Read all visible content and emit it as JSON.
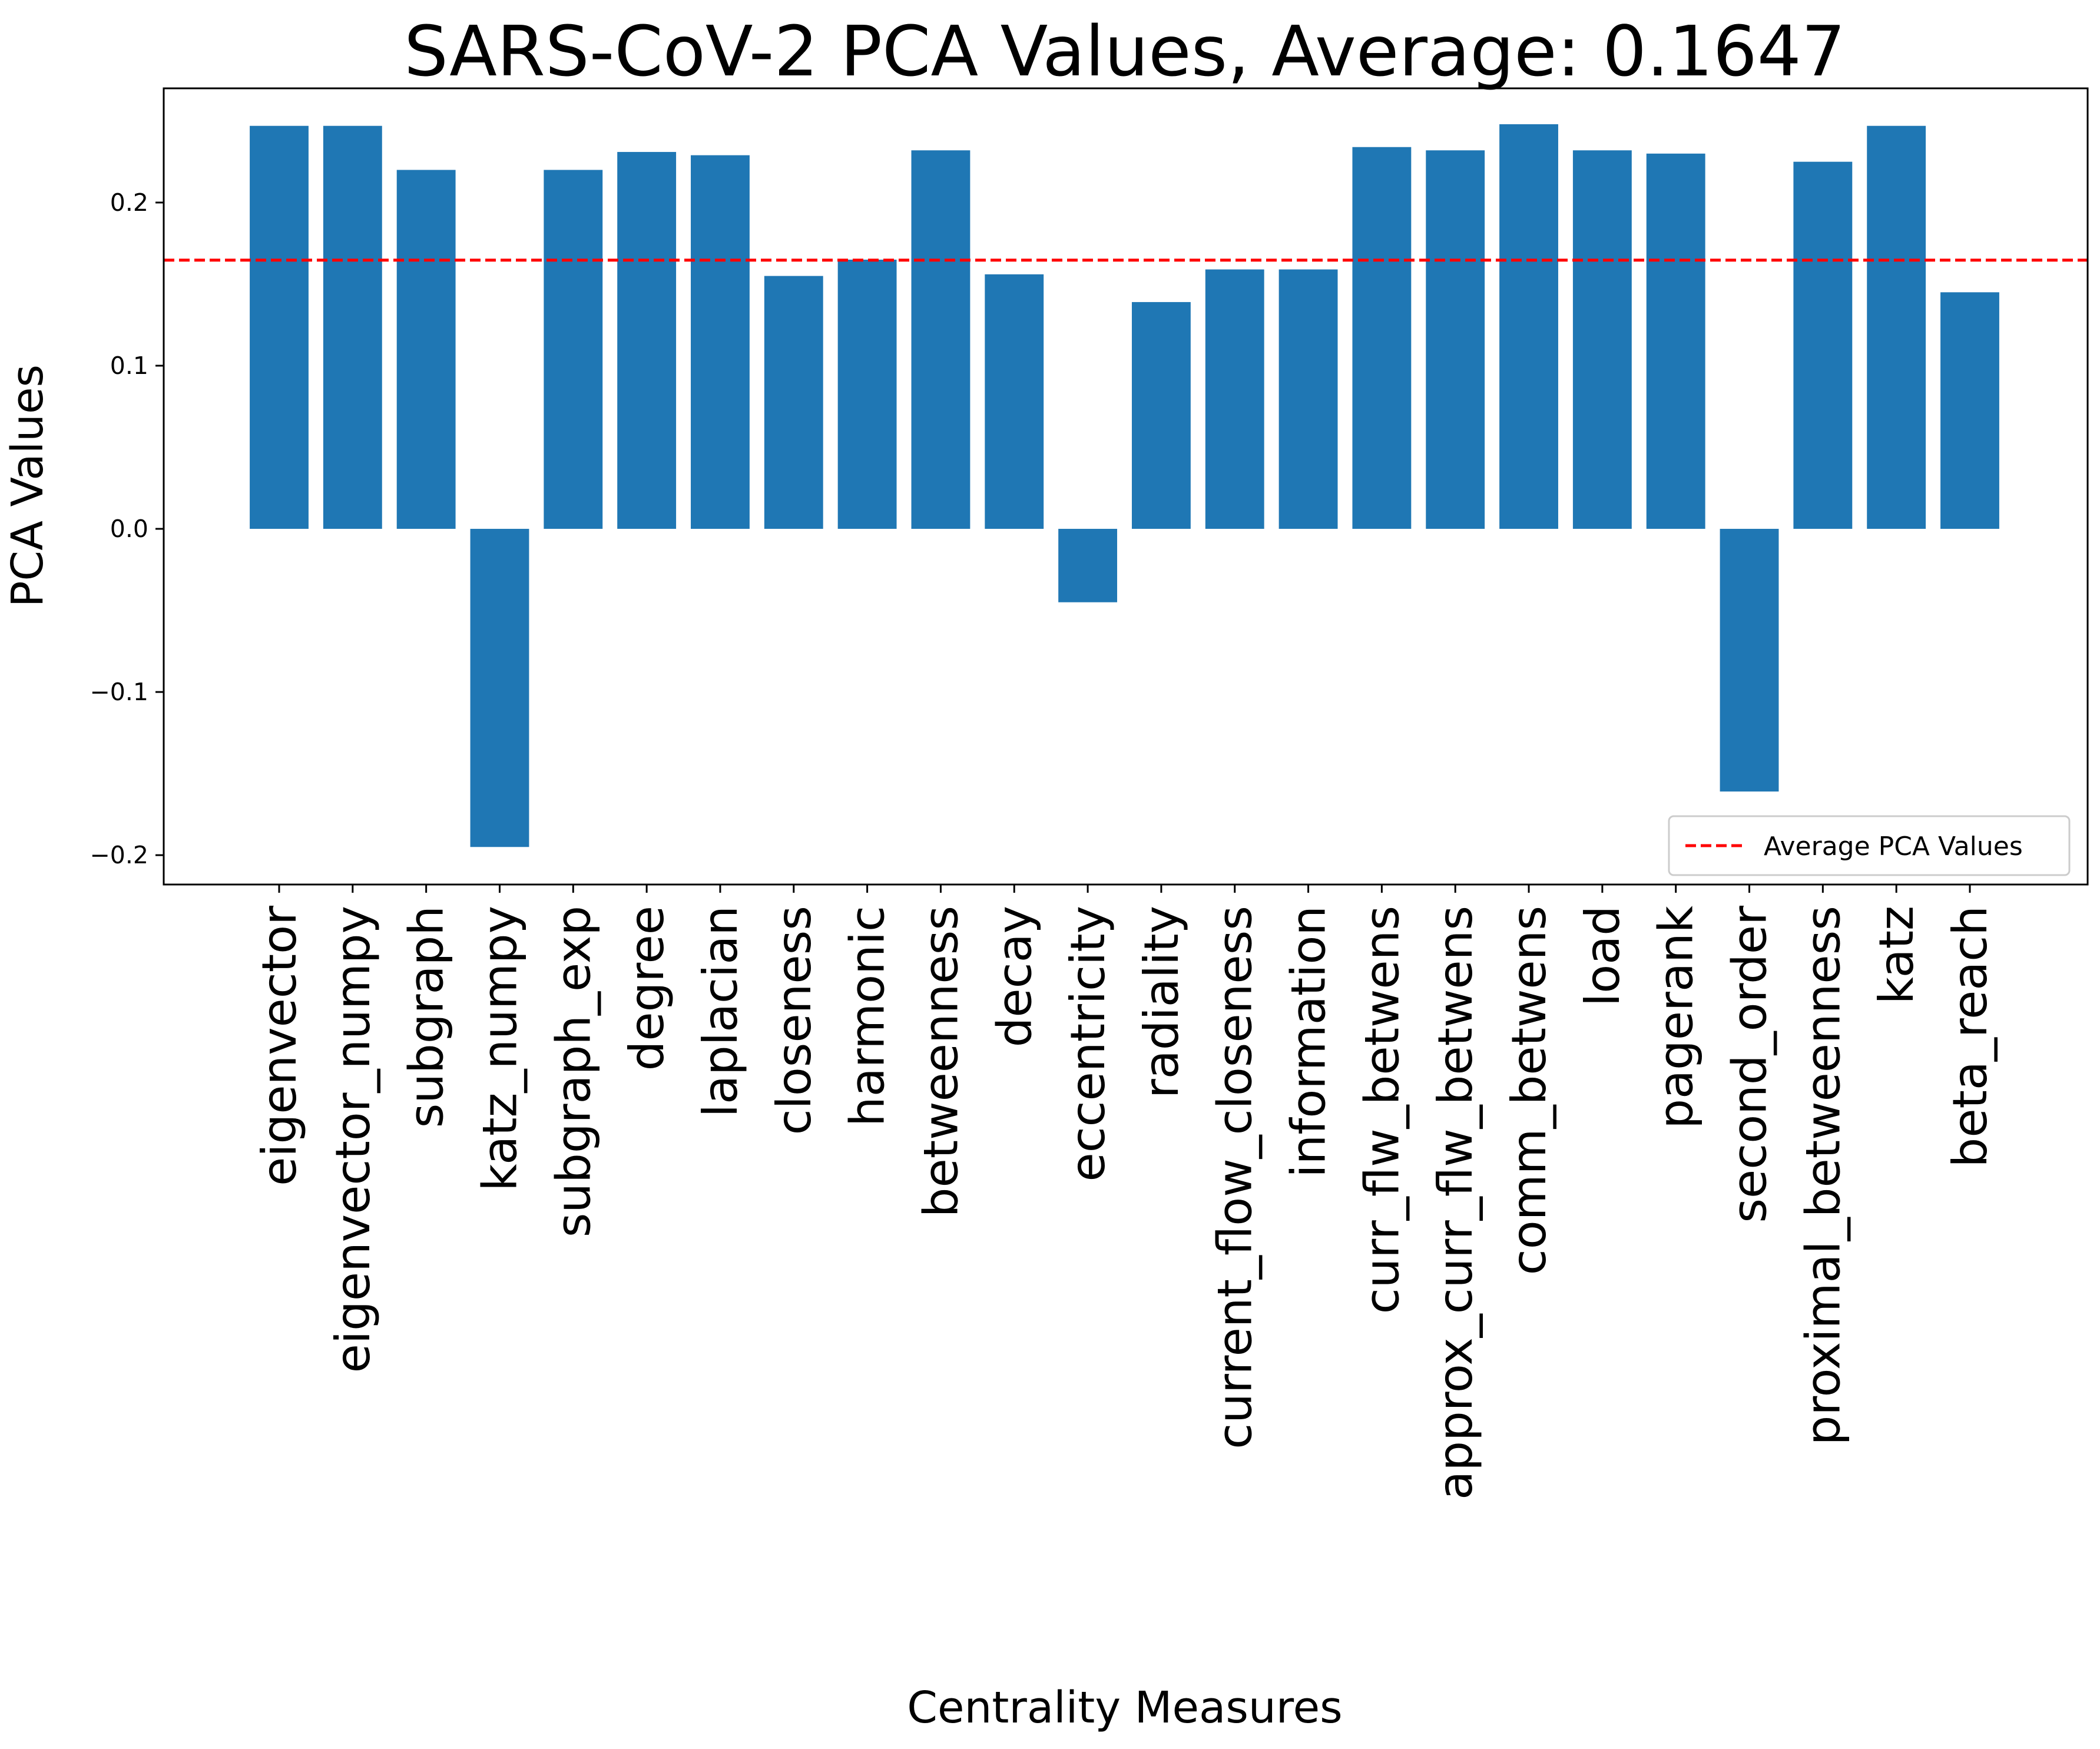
{
  "chart_data": {
    "type": "bar",
    "title": "SARS-CoV-2 PCA Values, Average: 0.1647",
    "xlabel": "Centrality Measures",
    "ylabel": "PCA Values",
    "ylim": [
      -0.218,
      0.27
    ],
    "yticks": [
      {
        "value": -0.2,
        "label": "−0.2"
      },
      {
        "value": -0.1,
        "label": "−0.1"
      },
      {
        "value": 0.0,
        "label": "0.0"
      },
      {
        "value": 0.1,
        "label": "0.1"
      },
      {
        "value": 0.2,
        "label": "0.2"
      }
    ],
    "categories": [
      "eigenvector",
      "eigenvector_numpy",
      "subgraph",
      "katz_numpy",
      "subgraph_exp",
      "degree",
      "laplacian",
      "closeness",
      "harmonic",
      "betweenness",
      "decay",
      "eccentricity",
      "radiality",
      "current_flow_closeness",
      "information",
      "curr_flw_betwens",
      "approx_curr_flw_betwens",
      "comm_betwens",
      "load",
      "pagerank",
      "second_order",
      "proximal_betweenness",
      "katz",
      "beta_reach"
    ],
    "values": [
      0.247,
      0.247,
      0.22,
      -0.195,
      0.22,
      0.231,
      0.229,
      0.155,
      0.165,
      0.232,
      0.156,
      -0.045,
      0.139,
      0.159,
      0.159,
      0.234,
      0.232,
      0.248,
      0.232,
      0.23,
      -0.161,
      0.225,
      0.247,
      0.145
    ],
    "average": 0.1647,
    "bar_color": "#1f77b4",
    "average_line_color": "#ff0000",
    "legend": {
      "placement": "lower-right",
      "entries": [
        "Average PCA Values"
      ]
    }
  }
}
